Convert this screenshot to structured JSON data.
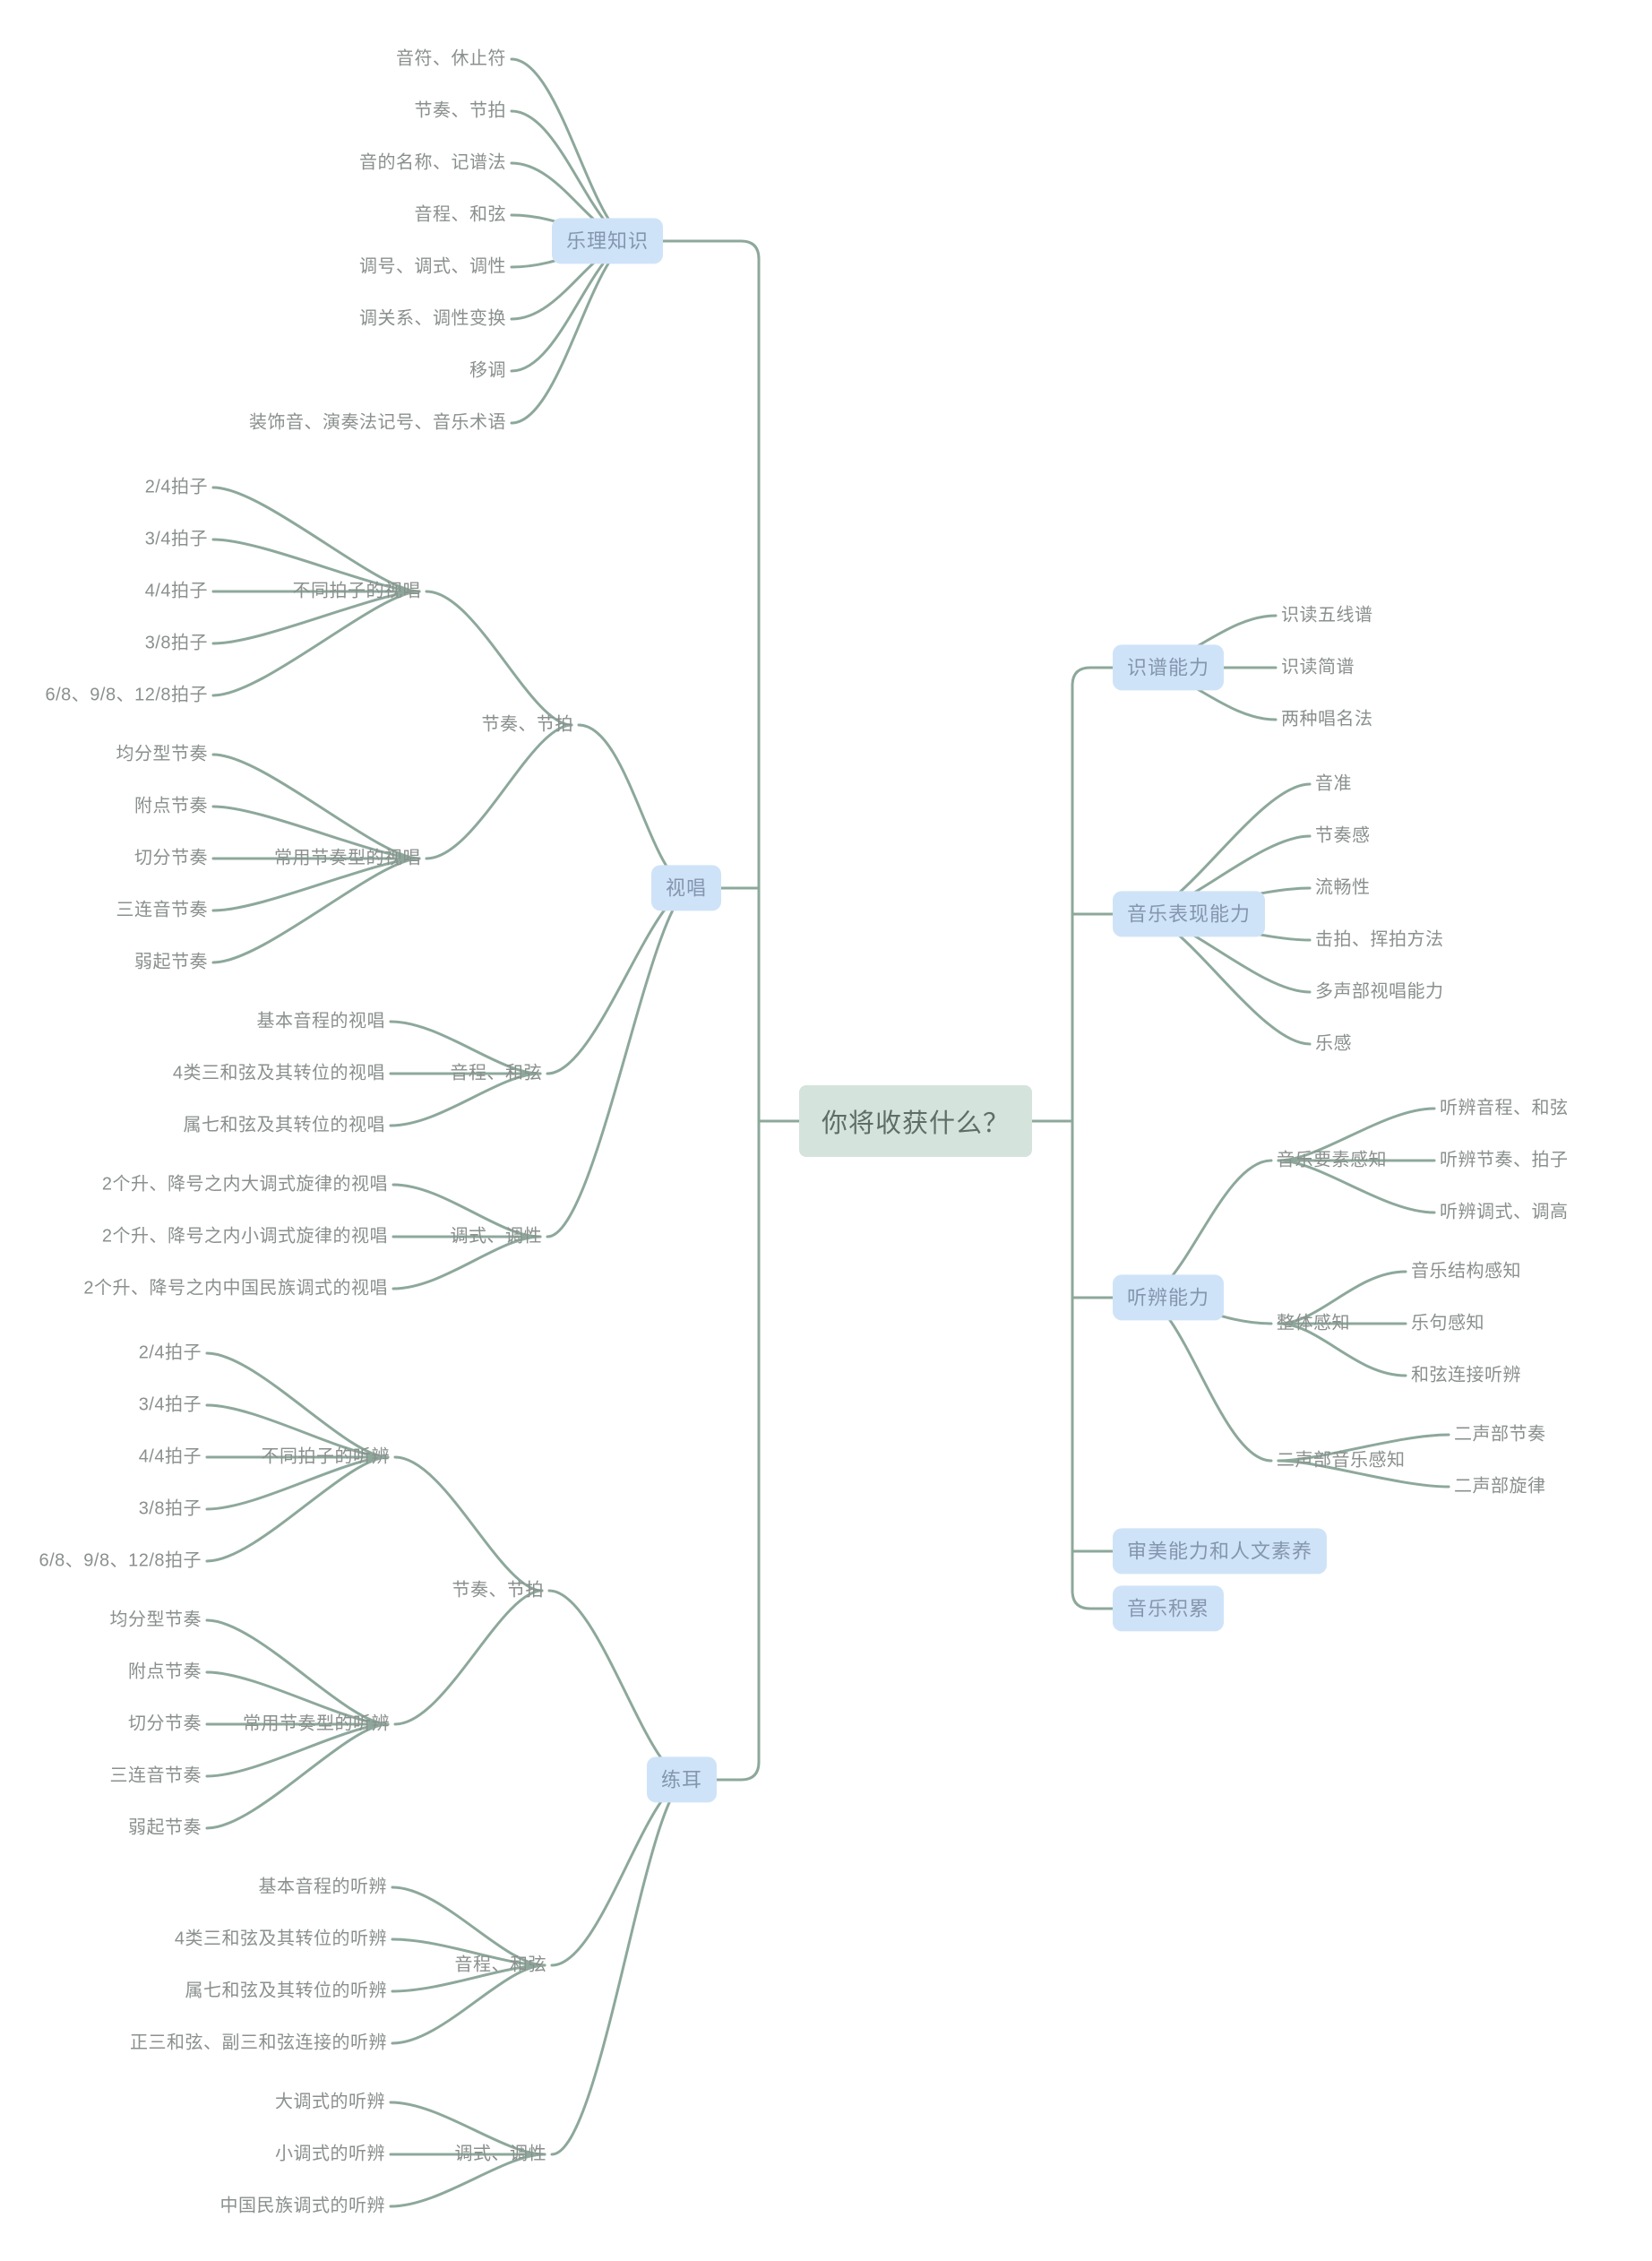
{
  "root": {
    "label": "你将收获什么？"
  },
  "left": [
    {
      "label": "乐理知识",
      "children": [
        {
          "label": "音符、休止符"
        },
        {
          "label": "节奏、节拍"
        },
        {
          "label": "音的名称、记谱法"
        },
        {
          "label": "音程、和弦"
        },
        {
          "label": "调号、调式、调性"
        },
        {
          "label": "调关系、调性变换"
        },
        {
          "label": "移调"
        },
        {
          "label": "装饰音、演奏法记号、音乐术语"
        }
      ]
    },
    {
      "label": "视唱",
      "children": [
        {
          "label": "节奏、节拍",
          "children": [
            {
              "label": "不同拍子的视唱",
              "children": [
                {
                  "label": "2/4拍子"
                },
                {
                  "label": "3/4拍子"
                },
                {
                  "label": "4/4拍子"
                },
                {
                  "label": "3/8拍子"
                },
                {
                  "label": "6/8、9/8、12/8拍子"
                }
              ]
            },
            {
              "label": "常用节奏型的视唱",
              "children": [
                {
                  "label": "均分型节奏"
                },
                {
                  "label": "附点节奏"
                },
                {
                  "label": "切分节奏"
                },
                {
                  "label": "三连音节奏"
                },
                {
                  "label": "弱起节奏"
                }
              ]
            }
          ]
        },
        {
          "label": "音程、和弦",
          "children": [
            {
              "label": "基本音程的视唱"
            },
            {
              "label": "4类三和弦及其转位的视唱"
            },
            {
              "label": "属七和弦及其转位的视唱"
            }
          ]
        },
        {
          "label": "调式、调性",
          "children": [
            {
              "label": "2个升、降号之内大调式旋律的视唱"
            },
            {
              "label": "2个升、降号之内小调式旋律的视唱"
            },
            {
              "label": "2个升、降号之内中国民族调式的视唱"
            }
          ]
        }
      ]
    },
    {
      "label": "练耳",
      "children": [
        {
          "label": "节奏、节拍",
          "children": [
            {
              "label": "不同拍子的听辨",
              "children": [
                {
                  "label": "2/4拍子"
                },
                {
                  "label": "3/4拍子"
                },
                {
                  "label": "4/4拍子"
                },
                {
                  "label": "3/8拍子"
                },
                {
                  "label": "6/8、9/8、12/8拍子"
                }
              ]
            },
            {
              "label": "常用节奏型的听辨",
              "children": [
                {
                  "label": "均分型节奏"
                },
                {
                  "label": "附点节奏"
                },
                {
                  "label": "切分节奏"
                },
                {
                  "label": "三连音节奏"
                },
                {
                  "label": "弱起节奏"
                }
              ]
            }
          ]
        },
        {
          "label": "音程、和弦",
          "children": [
            {
              "label": "基本音程的听辨"
            },
            {
              "label": "4类三和弦及其转位的听辨"
            },
            {
              "label": "属七和弦及其转位的听辨"
            },
            {
              "label": "正三和弦、副三和弦连接的听辨"
            }
          ]
        },
        {
          "label": "调式、调性",
          "children": [
            {
              "label": "大调式的听辨"
            },
            {
              "label": "小调式的听辨"
            },
            {
              "label": "中国民族调式的听辨"
            }
          ]
        }
      ]
    }
  ],
  "right": [
    {
      "label": "识谱能力",
      "children": [
        {
          "label": "识读五线谱"
        },
        {
          "label": "识读简谱"
        },
        {
          "label": "两种唱名法"
        }
      ]
    },
    {
      "label": "音乐表现能力",
      "children": [
        {
          "label": "音准"
        },
        {
          "label": "节奏感"
        },
        {
          "label": "流畅性"
        },
        {
          "label": "击拍、挥拍方法"
        },
        {
          "label": "多声部视唱能力"
        },
        {
          "label": "乐感"
        }
      ]
    },
    {
      "label": "听辨能力",
      "children": [
        {
          "label": "音乐要素感知",
          "children": [
            {
              "label": "听辨音程、和弦"
            },
            {
              "label": "听辨节奏、拍子"
            },
            {
              "label": "听辨调式、调高"
            }
          ]
        },
        {
          "label": "整体感知",
          "children": [
            {
              "label": "音乐结构感知"
            },
            {
              "label": "乐句感知"
            },
            {
              "label": "和弦连接听辨"
            }
          ]
        },
        {
          "label": "二声部音乐感知",
          "children": [
            {
              "label": "二声部节奏"
            },
            {
              "label": "二声部旋律"
            }
          ]
        }
      ]
    },
    {
      "label": "审美能力和人文素养"
    },
    {
      "label": "音乐积累"
    }
  ],
  "colors": {
    "branch_line": "#8da89b",
    "topic_box_bg": "#cfe3f8",
    "topic_box_text": "#8496ae",
    "center_bg": "#d4e3db",
    "center_text": "#5e6e67",
    "plain_text": "#8a908e"
  }
}
